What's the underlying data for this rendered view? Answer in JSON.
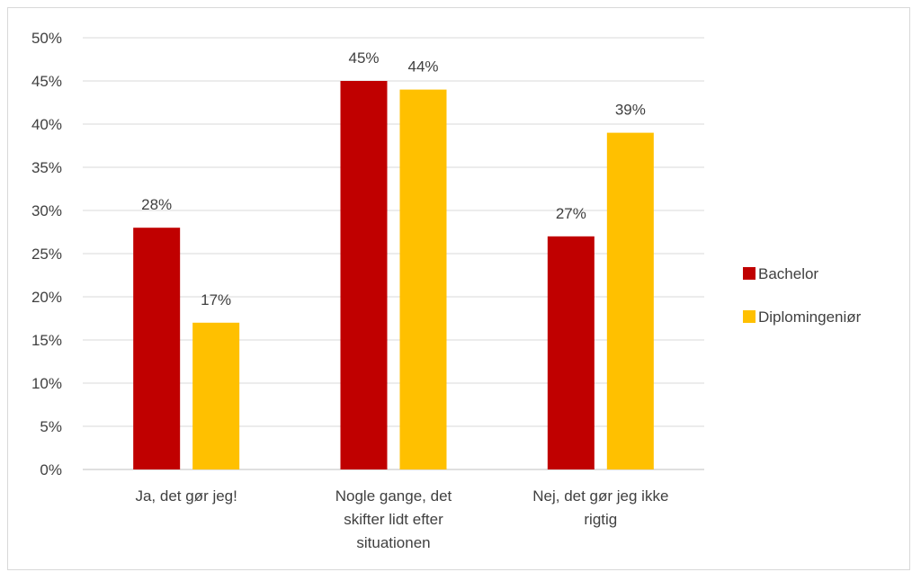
{
  "chart_data": {
    "type": "bar",
    "categories": [
      [
        "Ja, det gør jeg!"
      ],
      [
        "Nogle gange, det",
        "skifter lidt efter",
        "situationen"
      ],
      [
        "Nej, det gør jeg ikke",
        "rigtig"
      ]
    ],
    "series": [
      {
        "name": "Bachelor",
        "color": "#c00000",
        "values": [
          28,
          45,
          27
        ]
      },
      {
        "name": "Diplomingeniør",
        "color": "#ffc000",
        "values": [
          17,
          44,
          39
        ]
      }
    ],
    "ylim": [
      0,
      50
    ],
    "yticks": [
      0,
      5,
      10,
      15,
      20,
      25,
      30,
      35,
      40,
      45,
      50
    ],
    "value_format": "percent",
    "grid": true,
    "legend": "right"
  }
}
